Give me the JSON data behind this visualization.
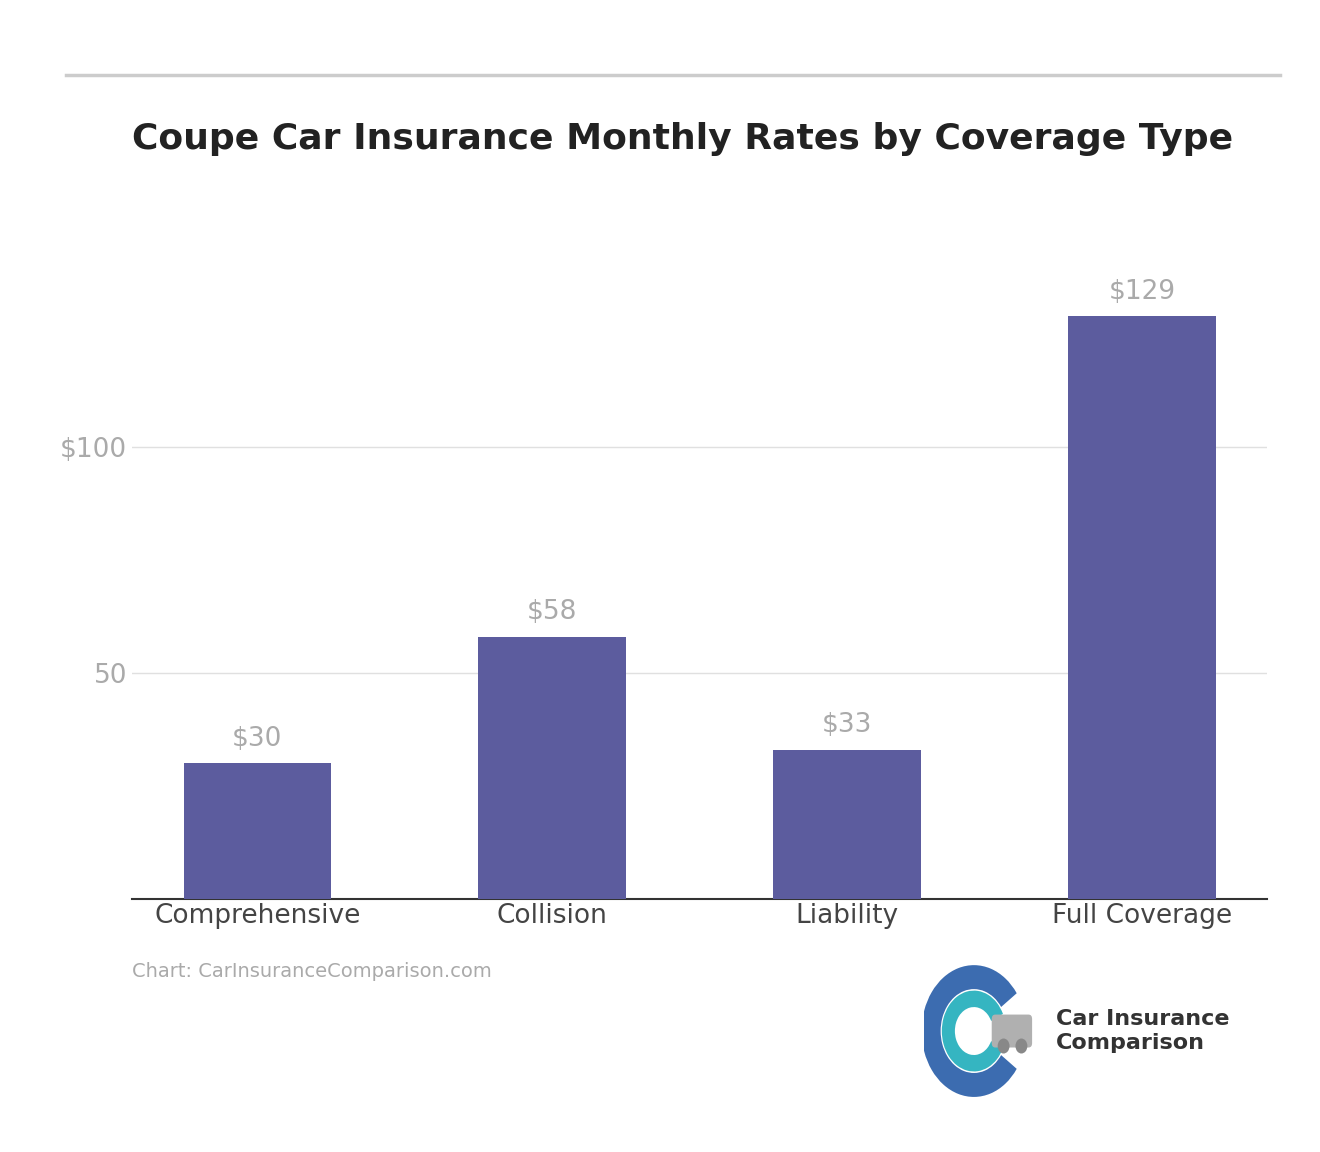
{
  "title": "Coupe Car Insurance Monthly Rates by Coverage Type",
  "categories": [
    "Comprehensive",
    "Collision",
    "Liability",
    "Full Coverage"
  ],
  "values": [
    30,
    58,
    33,
    129
  ],
  "bar_color": "#5c5c9e",
  "bar_labels": [
    "$30",
    "$58",
    "$33",
    "$129"
  ],
  "ytick_values": [
    50,
    100
  ],
  "ytick_labels": [
    "50",
    "$100"
  ],
  "ylim": [
    0,
    148
  ],
  "background_color": "#ffffff",
  "title_fontsize": 26,
  "tick_fontsize": 19,
  "label_fontsize": 19,
  "bar_label_fontsize": 19,
  "annotation_text": "Chart: CarInsuranceComparison.com",
  "annotation_color": "#aaaaaa",
  "top_line_color": "#cccccc",
  "grid_color": "#e0e0e0",
  "axis_label_color": "#aaaaaa",
  "category_label_color": "#444444",
  "title_color": "#222222",
  "logo_text": "Car Insurance\nComparison",
  "logo_text_color": "#333333",
  "logo_text_fontsize": 16
}
